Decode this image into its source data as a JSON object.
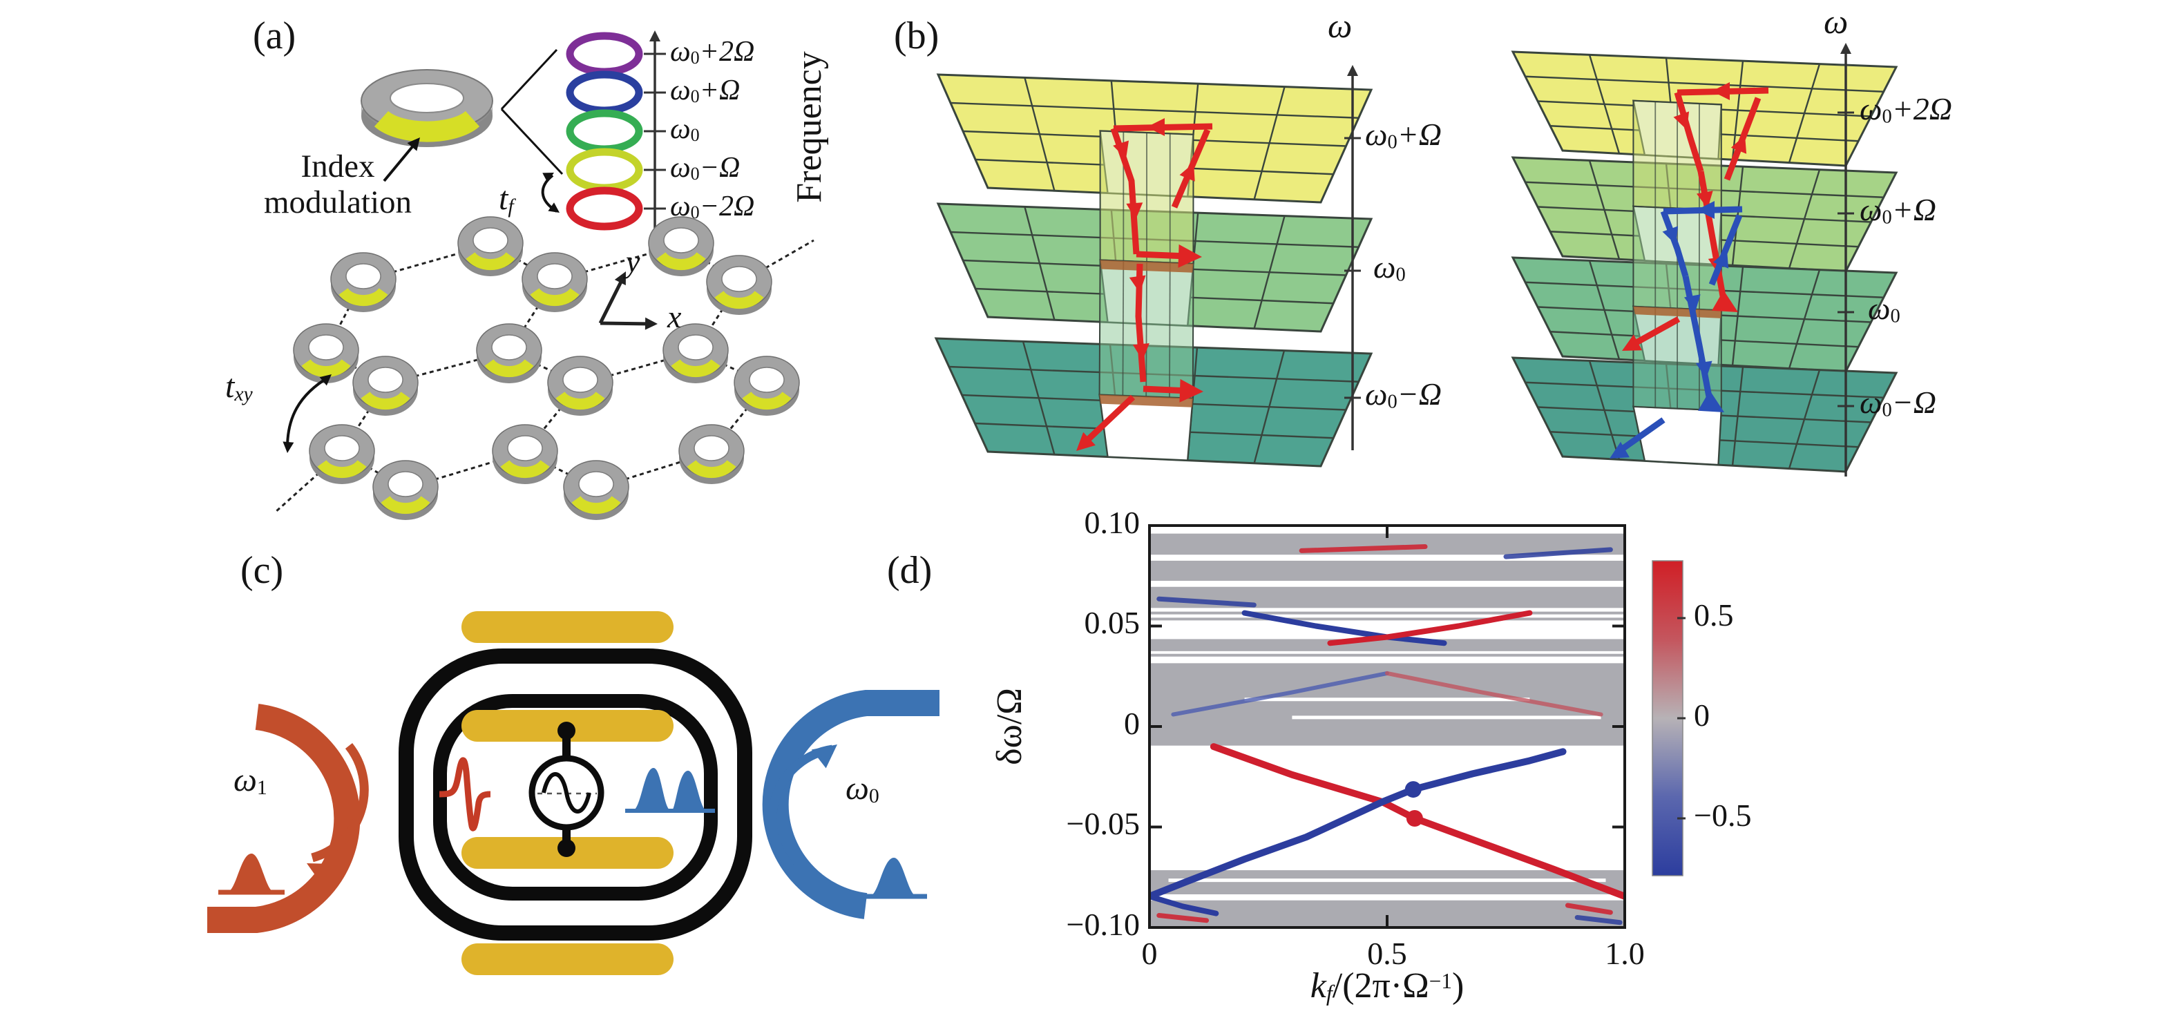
{
  "panels": {
    "a": {
      "label": "(a)",
      "ring_caption_line1": "Index",
      "ring_caption_line2": "modulation",
      "frequency_axis_label": "Frequency",
      "coupling_tf": {
        "base": "t",
        "sub": "f"
      },
      "coupling_txy": {
        "base": "t",
        "sub": "xy"
      },
      "axes": {
        "x": "x",
        "y": "y"
      },
      "ladder": [
        {
          "pre": "ω",
          "sub": "0",
          "post": "+2Ω",
          "color": "#7e2f97"
        },
        {
          "pre": "ω",
          "sub": "0",
          "post": "+Ω",
          "color": "#2a3f9f"
        },
        {
          "pre": "ω",
          "sub": "0",
          "post": "",
          "color": "#35ad53"
        },
        {
          "pre": "ω",
          "sub": "0",
          "post": "−Ω",
          "color": "#c3d32a"
        },
        {
          "pre": "ω",
          "sub": "0",
          "post": "−2Ω",
          "color": "#d6212b"
        }
      ]
    },
    "b": {
      "label": "(b)",
      "omega_axis_left": "ω",
      "omega_axis_right": "ω",
      "left_levels": [
        {
          "pre": "ω",
          "sub": "0",
          "post": "+Ω"
        },
        {
          "pre": "ω",
          "sub": "0",
          "post": ""
        },
        {
          "pre": "ω",
          "sub": "0",
          "post": "−Ω"
        }
      ],
      "right_levels": [
        {
          "pre": "ω",
          "sub": "0",
          "post": "+2Ω"
        },
        {
          "pre": "ω",
          "sub": "0",
          "post": "+Ω"
        },
        {
          "pre": "ω",
          "sub": "0",
          "post": ""
        },
        {
          "pre": "ω",
          "sub": "0",
          "post": "−Ω"
        }
      ]
    },
    "c": {
      "label": "(c)",
      "omega_input": {
        "base": "ω",
        "sub": "1"
      },
      "omega_output": {
        "base": "ω",
        "sub": "0"
      }
    },
    "d": {
      "label": "(d)",
      "ylabel": "δω/Ω",
      "xlabel": {
        "base": "k",
        "sub": "f",
        "mid": "/(2π·Ω",
        "sup": "−1",
        "end": ")"
      },
      "y_tick_labels": [
        "0.10",
        "0.05",
        "0",
        "−0.05",
        "−0.10"
      ],
      "x_tick_labels": [
        "0",
        "0.5",
        "1.0"
      ],
      "colorbar_tick_labels": [
        "0.5",
        "0",
        "−0.5"
      ]
    }
  },
  "chart_data": {
    "type": "line",
    "title": "",
    "xlabel": "k_f/(2π·Ω⁻¹)",
    "ylabel": "δω/Ω",
    "xlim": [
      0,
      1.0
    ],
    "ylim": [
      -0.1,
      0.1
    ],
    "x_ticks": [
      0,
      0.5,
      1.0
    ],
    "y_ticks": [
      0.1,
      0.05,
      0,
      -0.05,
      -0.1
    ],
    "grid": false,
    "legend_position": "none",
    "colorbar": {
      "tick_values": [
        0.5,
        0,
        -0.5
      ],
      "vmax": 0.75,
      "vmin": -0.75,
      "color_positive": "#d01f26",
      "color_zero": "#b7b2b6",
      "color_negative": "#2c3d9e"
    },
    "bulk_band_color": "#a7a7ad",
    "bulk_band_regions": [
      [
        0.096,
        0.0855
      ],
      [
        0.0825,
        0.0725
      ],
      [
        0.0695,
        0.059
      ],
      [
        0.0435,
        0.0375
      ],
      [
        0.0315,
        -0.0095
      ],
      [
        -0.0715,
        -0.0835
      ],
      [
        -0.0865,
        -0.1005
      ]
    ],
    "thin_gray_lines": [
      0.0565,
      0.0535,
      0.0355
    ],
    "white_slivers": [
      {
        "y": 0.0135,
        "x0": 0.2,
        "x1": 0.8
      },
      {
        "y": 0.0045,
        "x0": 0.3,
        "x1": 0.95
      },
      {
        "y": -0.0765,
        "x0": 0.04,
        "x1": 0.96
      }
    ],
    "series": [
      {
        "name": "edge-state-red",
        "color": "#cf1f2e",
        "width": 10,
        "points": [
          [
            0.135,
            -0.01
          ],
          [
            0.3,
            -0.024
          ],
          [
            0.49,
            -0.0375
          ],
          [
            0.558,
            -0.0457
          ],
          [
            0.7,
            -0.058
          ],
          [
            0.85,
            -0.071
          ],
          [
            0.95,
            -0.08
          ],
          [
            1.0,
            -0.0845
          ]
        ]
      },
      {
        "name": "edge-state-blue",
        "color": "#2c3d9e",
        "width": 10,
        "points": [
          [
            0.0,
            -0.0845
          ],
          [
            0.08,
            -0.077
          ],
          [
            0.2,
            -0.066
          ],
          [
            0.33,
            -0.055
          ],
          [
            0.49,
            -0.0375
          ],
          [
            0.555,
            -0.0313
          ],
          [
            0.68,
            -0.0235
          ],
          [
            0.8,
            -0.017
          ],
          [
            0.87,
            -0.0125
          ]
        ]
      },
      {
        "name": "upper-gap-blue",
        "color": "#2c3d9e",
        "width": 8,
        "points": [
          [
            0.2,
            0.0565
          ],
          [
            0.35,
            0.05
          ],
          [
            0.5,
            0.0445
          ],
          [
            0.62,
            0.0415
          ]
        ]
      },
      {
        "name": "upper-gap-red",
        "color": "#cf1f2e",
        "width": 8,
        "points": [
          [
            0.38,
            0.0415
          ],
          [
            0.5,
            0.0445
          ],
          [
            0.65,
            0.05
          ],
          [
            0.8,
            0.0565
          ]
        ]
      },
      {
        "name": "ingap-blue-faint",
        "color": "#4c5cb0",
        "width": 6,
        "opacity": 0.8,
        "points": [
          [
            0.05,
            0.006
          ],
          [
            0.3,
            0.017
          ],
          [
            0.5,
            0.0265
          ]
        ]
      },
      {
        "name": "ingap-red-faint",
        "color": "#c05560",
        "width": 6,
        "opacity": 0.8,
        "points": [
          [
            0.5,
            0.0265
          ],
          [
            0.7,
            0.017
          ],
          [
            0.95,
            0.006
          ]
        ]
      },
      {
        "name": "accent-red-top",
        "color": "#cf1f2e",
        "width": 7,
        "opacity": 0.85,
        "points": [
          [
            0.32,
            0.0875
          ],
          [
            0.58,
            0.0895
          ]
        ]
      },
      {
        "name": "accent-blue-topleft",
        "color": "#2c3d9e",
        "width": 7,
        "opacity": 0.85,
        "points": [
          [
            0.02,
            0.0635
          ],
          [
            0.22,
            0.0605
          ]
        ]
      },
      {
        "name": "accent-blue-topright",
        "color": "#2c3d9e",
        "width": 7,
        "opacity": 0.85,
        "points": [
          [
            0.75,
            0.0845
          ],
          [
            0.97,
            0.088
          ]
        ]
      },
      {
        "name": "accent-blue-bottomleft",
        "color": "#2c3d9e",
        "width": 8,
        "points": [
          [
            0.0,
            -0.0845
          ],
          [
            0.07,
            -0.0895
          ],
          [
            0.14,
            -0.093
          ]
        ]
      },
      {
        "name": "accent-red-bottomleft",
        "color": "#cf1f2e",
        "width": 7,
        "opacity": 0.85,
        "points": [
          [
            0.02,
            -0.094
          ],
          [
            0.12,
            -0.0965
          ]
        ]
      },
      {
        "name": "accent-red-bottomright",
        "color": "#cf1f2e",
        "width": 7,
        "opacity": 0.85,
        "points": [
          [
            0.88,
            -0.089
          ],
          [
            0.97,
            -0.0925
          ]
        ]
      },
      {
        "name": "accent-blue-bottomright",
        "color": "#2c3d9e",
        "width": 7,
        "opacity": 0.85,
        "points": [
          [
            0.9,
            -0.095
          ],
          [
            0.99,
            -0.0975
          ]
        ]
      }
    ],
    "markers": [
      {
        "x": 0.555,
        "y": -0.0313,
        "color": "#2c3d9e"
      },
      {
        "x": 0.558,
        "y": -0.0457,
        "color": "#cf1f2e"
      }
    ]
  }
}
